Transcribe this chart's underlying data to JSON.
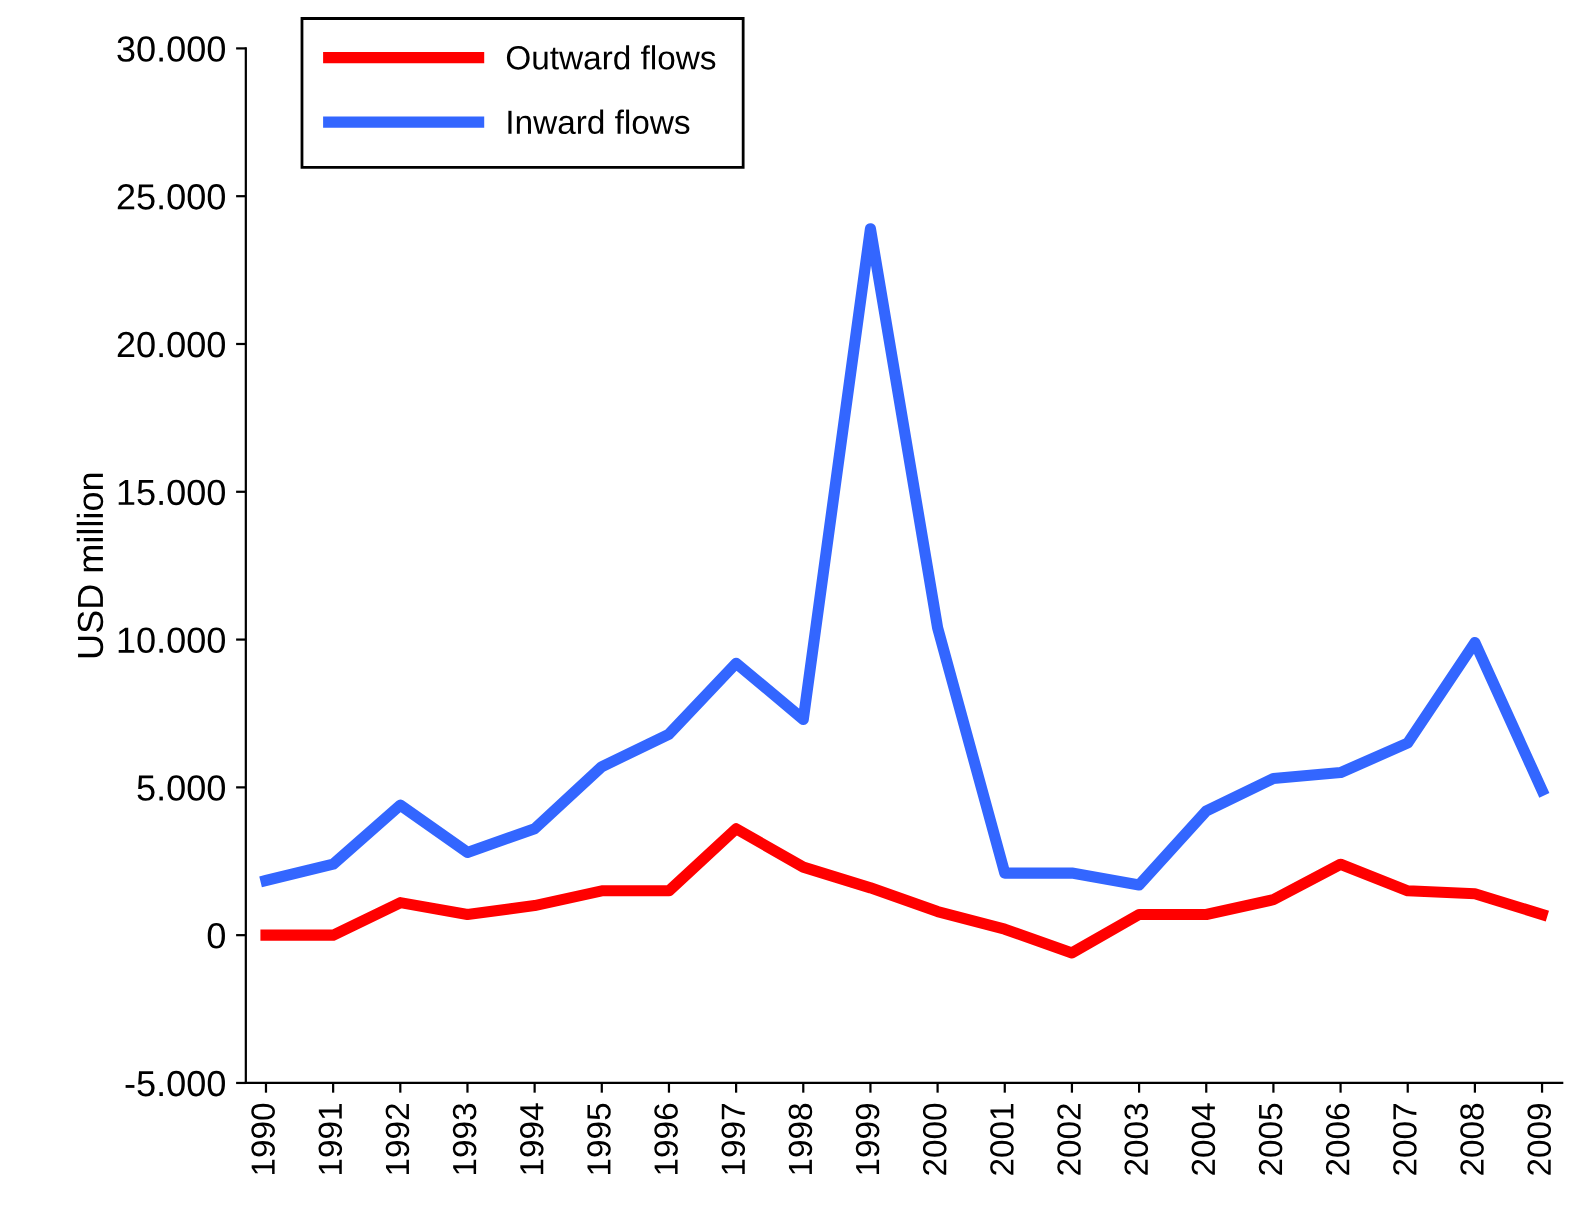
{
  "chart_data": {
    "type": "line",
    "ylabel": "USD million",
    "categories": [
      "1990",
      "1991",
      "1992",
      "1993",
      "1994",
      "1995",
      "1996",
      "1997",
      "1998",
      "1999",
      "2000",
      "2001",
      "2002",
      "2003",
      "2004",
      "2005",
      "2006",
      "2007",
      "2008",
      "2009"
    ],
    "series": [
      {
        "name": "Outward flows",
        "color": "#ff0000",
        "values": [
          0,
          0,
          1100,
          700,
          1000,
          1500,
          1500,
          3600,
          2300,
          1600,
          800,
          200,
          -600,
          700,
          700,
          1200,
          2400,
          1500,
          1400,
          700
        ]
      },
      {
        "name": "Inward flows",
        "color": "#3366ff",
        "values": [
          1850,
          2400,
          4400,
          2800,
          3600,
          5700,
          6800,
          9200,
          7300,
          23900,
          10400,
          2100,
          2100,
          1700,
          4200,
          5300,
          5500,
          6500,
          9900,
          4900
        ]
      }
    ],
    "ylim": [
      -5000,
      30000
    ],
    "yticks": [
      {
        "value": -5000,
        "label": "-5.000"
      },
      {
        "value": 0,
        "label": "0"
      },
      {
        "value": 5000,
        "label": "5.000"
      },
      {
        "value": 10000,
        "label": "10.000"
      },
      {
        "value": 15000,
        "label": "15.000"
      },
      {
        "value": 20000,
        "label": "20.000"
      },
      {
        "value": 25000,
        "label": "25.000"
      },
      {
        "value": 30000,
        "label": "30.000"
      }
    ],
    "grid": false,
    "legend": "top left",
    "marker": "none",
    "line_style": "solid"
  }
}
